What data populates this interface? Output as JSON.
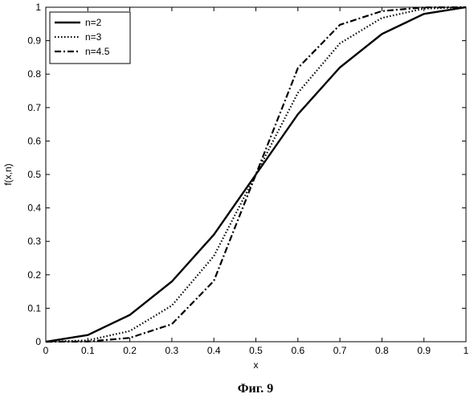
{
  "chart_data": {
    "type": "line",
    "xlabel": "x",
    "ylabel": "f(x,n)",
    "xlim": [
      0,
      1
    ],
    "ylim": [
      0,
      1
    ],
    "grid": false,
    "legend_position": "top-left",
    "x_ticks": [
      "0",
      "0.1",
      "0.2",
      "0.3",
      "0.4",
      "0.5",
      "0.6",
      "0.7",
      "0.8",
      "0.9",
      "1"
    ],
    "y_ticks": [
      "0",
      "0.1",
      "0.2",
      "0.3",
      "0.4",
      "0.5",
      "0.6",
      "0.7",
      "0.8",
      "0.9",
      "1"
    ],
    "x": [
      0,
      0.1,
      0.2,
      0.3,
      0.4,
      0.5,
      0.6,
      0.7,
      0.8,
      0.9,
      1
    ],
    "series": [
      {
        "name": "n=2",
        "style": "solid",
        "values": [
          0,
          0.02,
          0.08,
          0.18,
          0.32,
          0.5,
          0.68,
          0.82,
          0.92,
          0.98,
          1
        ]
      },
      {
        "name": "n=3",
        "style": "dotted",
        "values": [
          0,
          0.004,
          0.032,
          0.108,
          0.256,
          0.5,
          0.744,
          0.892,
          0.968,
          0.996,
          1
        ]
      },
      {
        "name": "n=4.5",
        "style": "dashdot",
        "values": [
          0,
          0.0005,
          0.0115,
          0.0525,
          0.1818,
          0.5,
          0.8182,
          0.9475,
          0.9885,
          0.9995,
          1
        ]
      }
    ]
  },
  "caption": "Фиг. 9"
}
